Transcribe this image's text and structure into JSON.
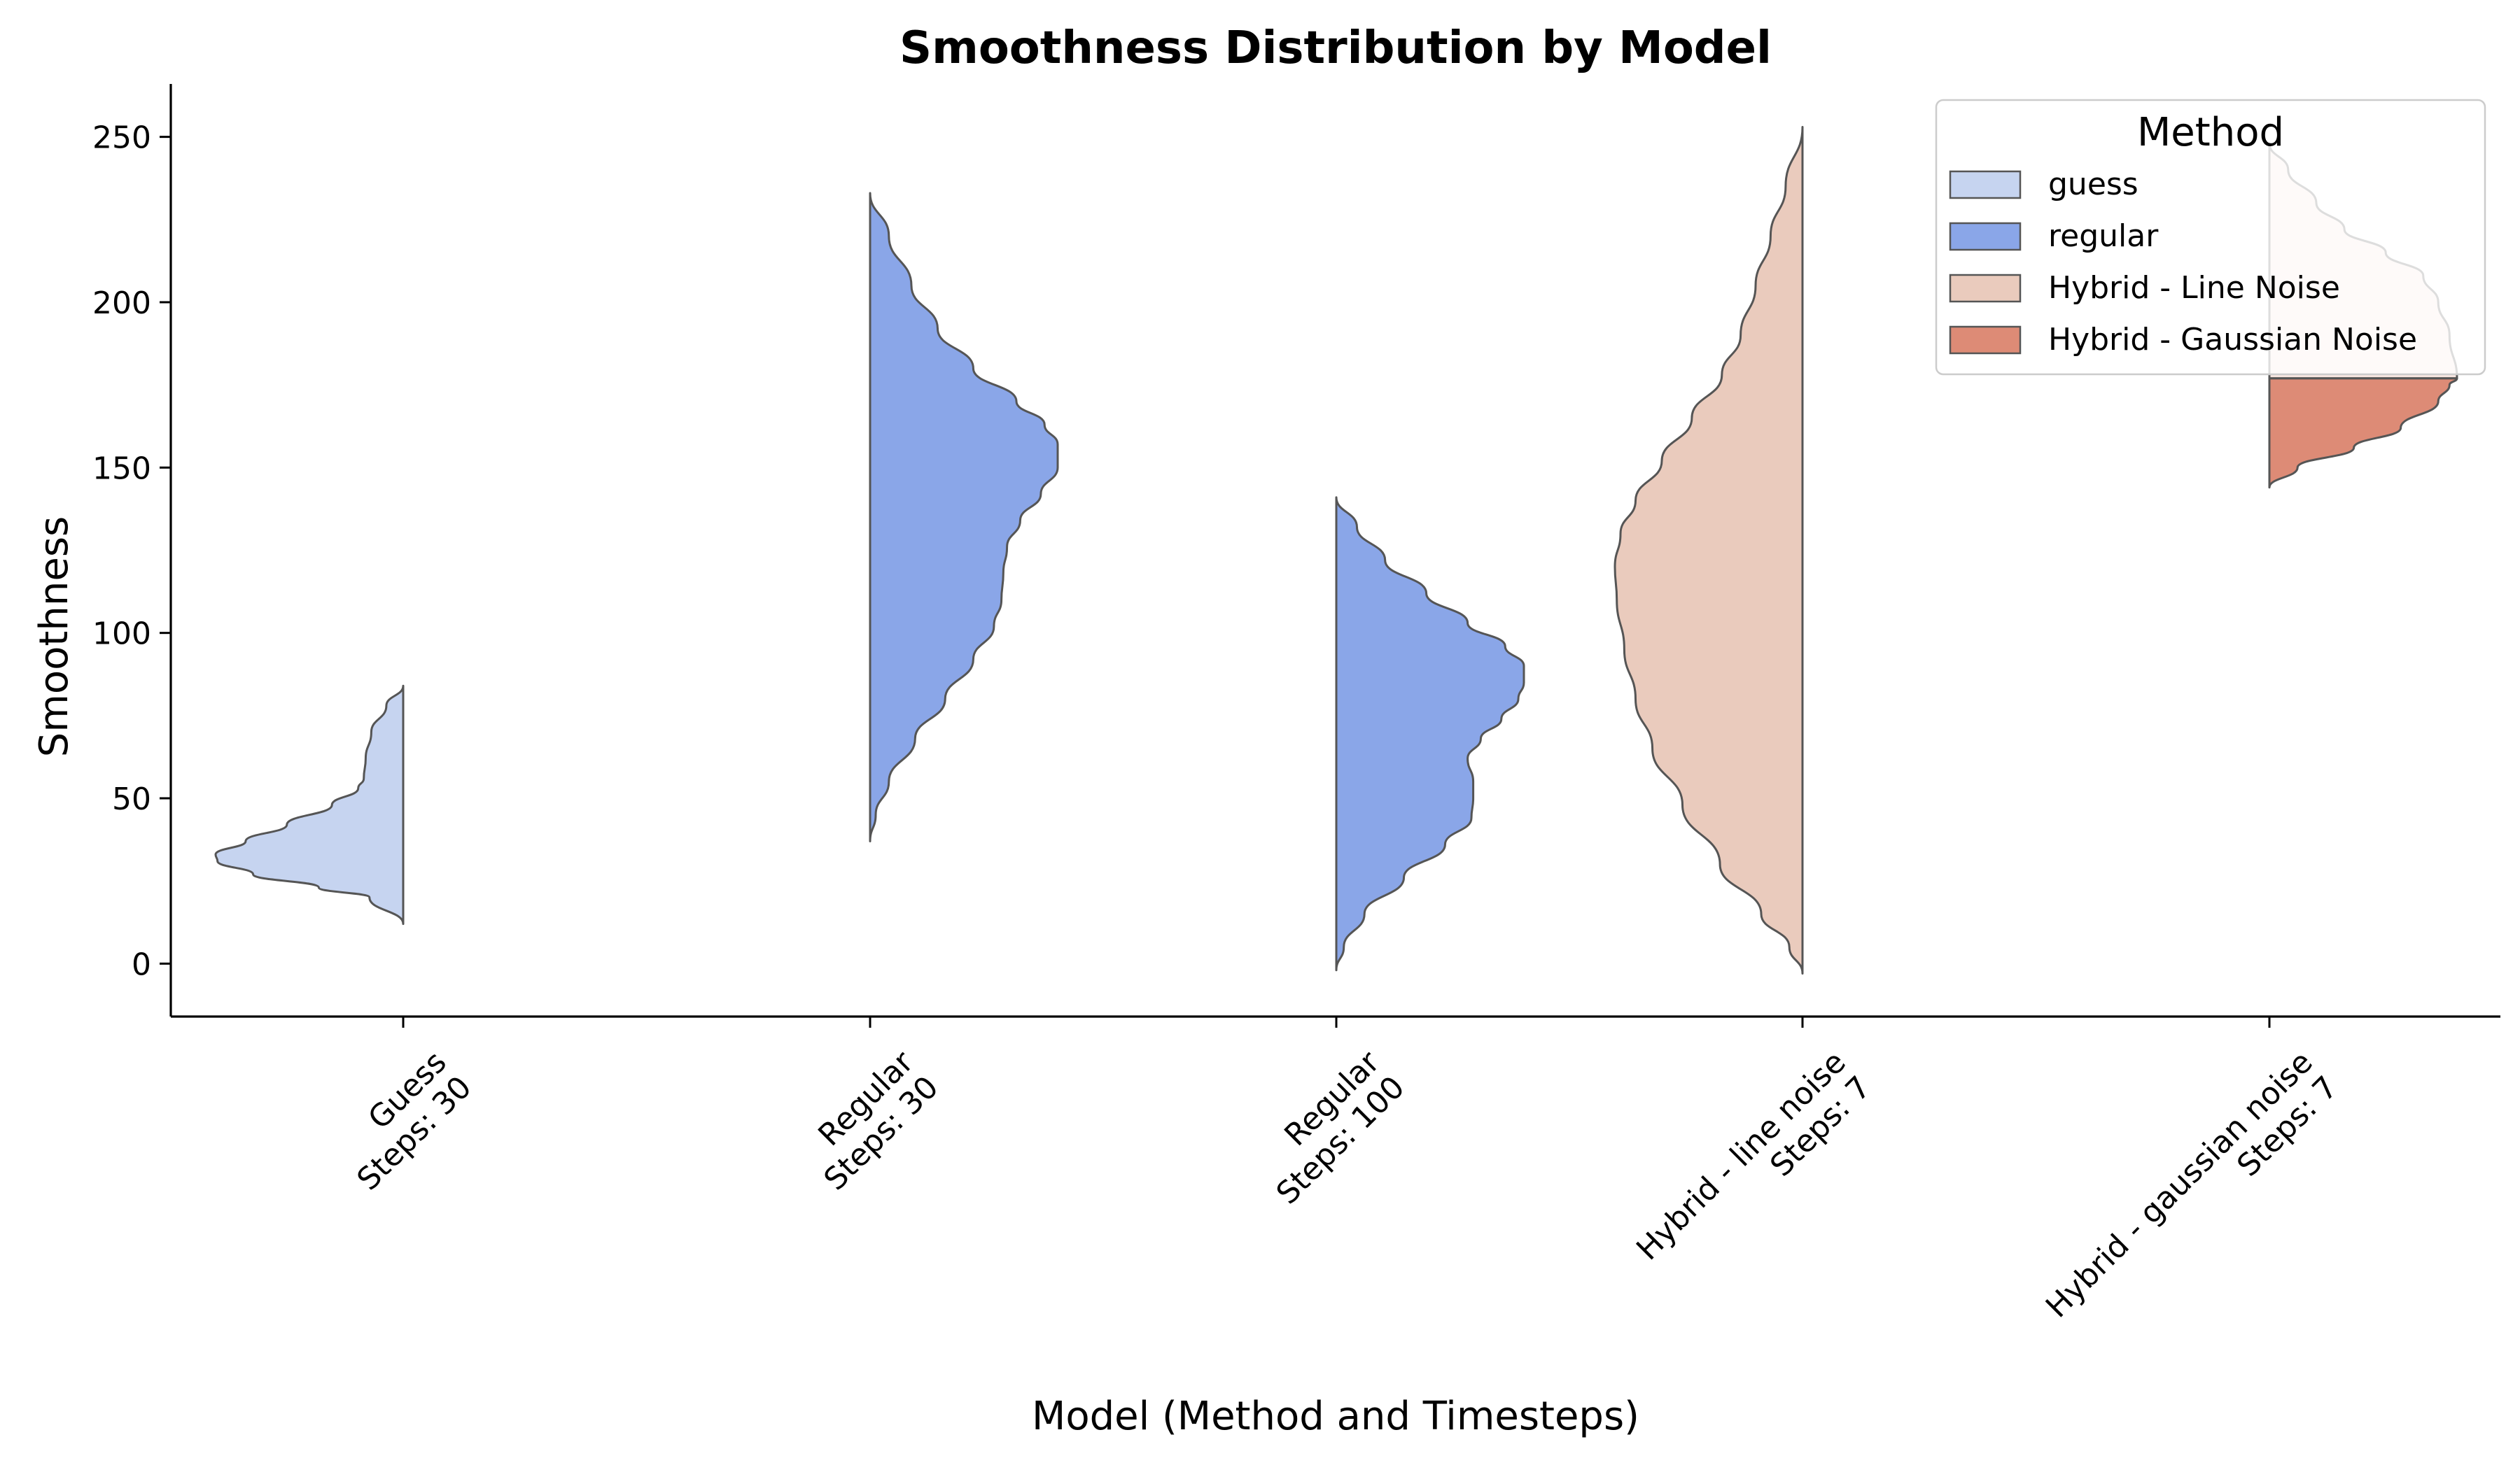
{
  "chart_data": {
    "type": "violin",
    "title": "Smoothness Distribution by Model",
    "xlabel": "Model (Method and Timesteps)",
    "ylabel": "Smoothness",
    "ylim": [
      -16,
      266
    ],
    "yticks": [
      0,
      50,
      100,
      150,
      200,
      250
    ],
    "grid": false,
    "legend": {
      "title": "Method",
      "placement": "top-right",
      "entries": [
        {
          "label": "guess",
          "color": "#c6d4f0"
        },
        {
          "label": "regular",
          "color": "#8aa6e8"
        },
        {
          "label": "Hybrid - Line Noise",
          "color": "#eacbbd"
        },
        {
          "label": "Hybrid - Gaussian Noise",
          "color": "#dd8b76"
        }
      ]
    },
    "categories": [
      {
        "label_lines": [
          "Guess",
          "Steps: 30"
        ],
        "halves": [
          {
            "side": "left",
            "method": "guess",
            "color": "#c6d4f0",
            "profile": [
              [
                12,
                0
              ],
              [
                20,
                0.18
              ],
              [
                23,
                0.45
              ],
              [
                27,
                0.8
              ],
              [
                31,
                0.99
              ],
              [
                33,
                1.0
              ],
              [
                37,
                0.84
              ],
              [
                42,
                0.62
              ],
              [
                48,
                0.38
              ],
              [
                53,
                0.24
              ],
              [
                56,
                0.21
              ],
              [
                62,
                0.2
              ],
              [
                70,
                0.17
              ],
              [
                78,
                0.09
              ],
              [
                84,
                0
              ]
            ]
          }
        ]
      },
      {
        "label_lines": [
          "Regular",
          "Steps: 30"
        ],
        "halves": [
          {
            "side": "right",
            "method": "regular",
            "color": "#8aa6e8",
            "profile": [
              [
                37,
                0
              ],
              [
                45,
                0.03
              ],
              [
                55,
                0.1
              ],
              [
                68,
                0.24
              ],
              [
                80,
                0.4
              ],
              [
                92,
                0.55
              ],
              [
                102,
                0.66
              ],
              [
                110,
                0.7
              ],
              [
                118,
                0.71
              ],
              [
                126,
                0.73
              ],
              [
                134,
                0.8
              ],
              [
                142,
                0.91
              ],
              [
                150,
                1.0
              ],
              [
                157,
                1.0
              ],
              [
                163,
                0.93
              ],
              [
                170,
                0.78
              ],
              [
                180,
                0.55
              ],
              [
                192,
                0.36
              ],
              [
                205,
                0.22
              ],
              [
                220,
                0.1
              ],
              [
                233,
                0
              ]
            ]
          }
        ]
      },
      {
        "label_lines": [
          "Regular",
          "Steps: 100"
        ],
        "halves": [
          {
            "side": "right",
            "method": "regular",
            "color": "#8aa6e8",
            "profile": [
              [
                -2,
                0
              ],
              [
                5,
                0.04
              ],
              [
                15,
                0.15
              ],
              [
                26,
                0.36
              ],
              [
                36,
                0.58
              ],
              [
                44,
                0.72
              ],
              [
                50,
                0.73
              ],
              [
                55,
                0.73
              ],
              [
                62,
                0.7
              ],
              [
                68,
                0.77
              ],
              [
                74,
                0.88
              ],
              [
                80,
                0.97
              ],
              [
                85,
                1.0
              ],
              [
                90,
                1.0
              ],
              [
                96,
                0.9
              ],
              [
                103,
                0.7
              ],
              [
                112,
                0.48
              ],
              [
                122,
                0.26
              ],
              [
                132,
                0.11
              ],
              [
                141,
                0
              ]
            ]
          }
        ]
      },
      {
        "label_lines": [
          "Hybrid - line noise",
          "Steps: 7"
        ],
        "halves": [
          {
            "side": "left",
            "method": "Hybrid - Line Noise",
            "color": "#eacbbd",
            "profile": [
              [
                -3,
                0
              ],
              [
                5,
                0.07
              ],
              [
                15,
                0.22
              ],
              [
                30,
                0.44
              ],
              [
                48,
                0.64
              ],
              [
                65,
                0.8
              ],
              [
                80,
                0.89
              ],
              [
                95,
                0.95
              ],
              [
                110,
                0.99
              ],
              [
                120,
                1.0
              ],
              [
                130,
                0.97
              ],
              [
                140,
                0.89
              ],
              [
                152,
                0.75
              ],
              [
                165,
                0.59
              ],
              [
                178,
                0.43
              ],
              [
                190,
                0.33
              ],
              [
                205,
                0.25
              ],
              [
                220,
                0.17
              ],
              [
                235,
                0.09
              ],
              [
                253,
                0
              ]
            ]
          }
        ]
      },
      {
        "label_lines": [
          "Hybrid - gaussian noise",
          "Steps: 7"
        ],
        "halves": [
          {
            "side": "right",
            "method": "Hybrid - Gaussian Noise",
            "color": "#dd8b76",
            "profile": [
              [
                144,
                0
              ],
              [
                150,
                0.15
              ],
              [
                156,
                0.45
              ],
              [
                162,
                0.7
              ],
              [
                170,
                0.9
              ],
              [
                175,
                0.96
              ],
              [
                177,
                1.0
              ]
            ]
          },
          {
            "side": "right",
            "method": "Hybrid - Gaussian Noise",
            "color": "#dd8b76",
            "faded_behind_legend": true,
            "profile": [
              [
                177,
                1.0
              ],
              [
                190,
                0.96
              ],
              [
                200,
                0.9
              ],
              [
                208,
                0.82
              ],
              [
                215,
                0.62
              ],
              [
                222,
                0.4
              ],
              [
                230,
                0.25
              ],
              [
                240,
                0.1
              ],
              [
                248,
                0
              ]
            ]
          }
        ]
      }
    ]
  }
}
